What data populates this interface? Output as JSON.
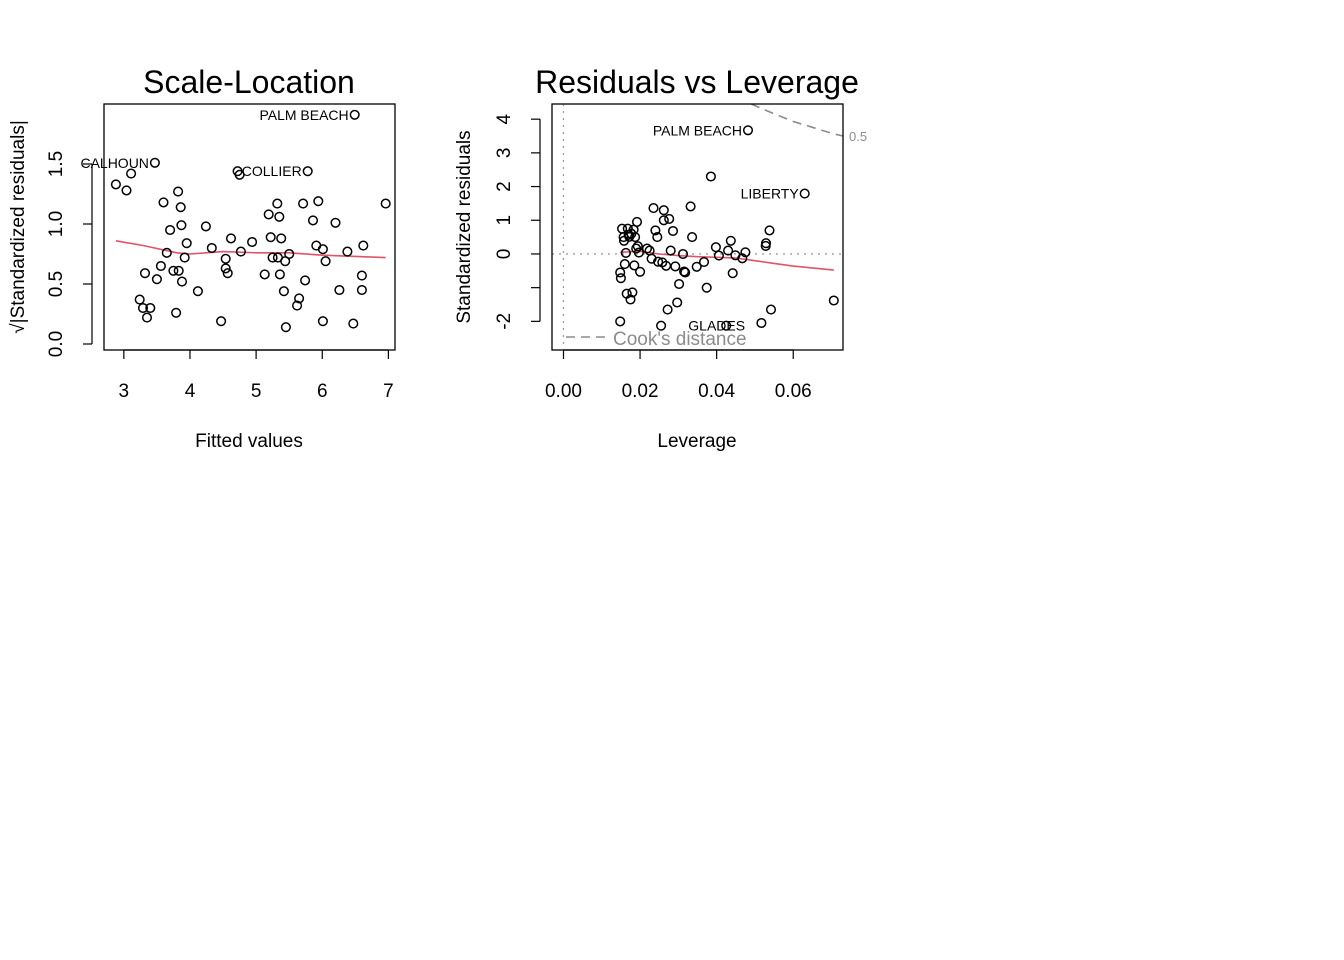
{
  "chart_data": [
    {
      "type": "scatter",
      "title": "Scale-Location",
      "xlabel": "Fitted values",
      "ylabel": "√|Standardized residuals|",
      "xlim": [
        2.7,
        7.1
      ],
      "ylim": [
        -0.05,
        2.0
      ],
      "xticks": [
        3,
        4,
        5,
        6,
        7
      ],
      "xtick_labels": [
        "3",
        "4",
        "5",
        "6",
        "7"
      ],
      "yticks": [
        0.0,
        0.5,
        1.0,
        1.5
      ],
      "ytick_labels": [
        "0.0",
        "0.5",
        "1.0",
        "1.5"
      ],
      "grid": false,
      "points": [
        [
          2.88,
          1.33
        ],
        [
          3.04,
          1.28
        ],
        [
          3.11,
          1.42
        ],
        [
          3.24,
          0.37
        ],
        [
          3.29,
          0.3
        ],
        [
          3.32,
          0.59
        ],
        [
          3.35,
          0.22
        ],
        [
          3.4,
          0.3
        ],
        [
          3.47,
          1.51
        ],
        [
          3.5,
          0.54
        ],
        [
          3.56,
          0.65
        ],
        [
          3.6,
          1.18
        ],
        [
          3.65,
          0.76
        ],
        [
          3.7,
          0.95
        ],
        [
          3.75,
          0.61
        ],
        [
          3.79,
          0.26
        ],
        [
          3.82,
          1.27
        ],
        [
          3.83,
          0.61
        ],
        [
          3.86,
          1.14
        ],
        [
          3.87,
          0.99
        ],
        [
          3.88,
          0.52
        ],
        [
          3.92,
          0.72
        ],
        [
          3.95,
          0.84
        ],
        [
          4.12,
          0.44
        ],
        [
          4.24,
          0.98
        ],
        [
          4.33,
          0.8
        ],
        [
          4.47,
          0.19
        ],
        [
          4.54,
          0.71
        ],
        [
          4.54,
          0.63
        ],
        [
          4.57,
          0.59
        ],
        [
          4.62,
          0.88
        ],
        [
          4.72,
          1.44
        ],
        [
          4.75,
          1.41
        ],
        [
          4.77,
          0.77
        ],
        [
          4.94,
          0.85
        ],
        [
          5.13,
          0.58
        ],
        [
          5.19,
          1.08
        ],
        [
          5.22,
          0.89
        ],
        [
          5.25,
          0.72
        ],
        [
          5.32,
          1.17
        ],
        [
          5.33,
          0.72
        ],
        [
          5.35,
          1.06
        ],
        [
          5.36,
          0.58
        ],
        [
          5.38,
          0.88
        ],
        [
          5.42,
          0.44
        ],
        [
          5.44,
          0.69
        ],
        [
          5.45,
          0.14
        ],
        [
          5.5,
          0.75
        ],
        [
          5.62,
          0.32
        ],
        [
          5.65,
          0.38
        ],
        [
          5.71,
          1.17
        ],
        [
          5.74,
          0.53
        ],
        [
          5.78,
          1.44
        ],
        [
          5.86,
          1.03
        ],
        [
          5.91,
          0.82
        ],
        [
          5.94,
          1.19
        ],
        [
          6.01,
          0.19
        ],
        [
          6.01,
          0.79
        ],
        [
          6.05,
          0.69
        ],
        [
          6.2,
          1.01
        ],
        [
          6.26,
          0.45
        ],
        [
          6.38,
          0.77
        ],
        [
          6.47,
          0.17
        ],
        [
          6.49,
          1.91
        ],
        [
          6.6,
          0.57
        ],
        [
          6.6,
          0.45
        ],
        [
          6.62,
          0.82
        ],
        [
          6.96,
          1.17
        ]
      ],
      "smooth_line": [
        [
          2.88,
          0.86
        ],
        [
          3.3,
          0.82
        ],
        [
          3.8,
          0.76
        ],
        [
          4.0,
          0.75
        ],
        [
          4.5,
          0.77
        ],
        [
          5.0,
          0.76
        ],
        [
          5.5,
          0.76
        ],
        [
          6.0,
          0.74
        ],
        [
          6.5,
          0.73
        ],
        [
          6.96,
          0.72
        ]
      ],
      "labels": [
        {
          "text": "PALM BEACH",
          "x": 6.49,
          "y": 1.91
        },
        {
          "text": "CALHOUN",
          "x": 3.47,
          "y": 1.51
        },
        {
          "text": "COLLIER",
          "x": 5.78,
          "y": 1.44
        }
      ]
    },
    {
      "type": "scatter",
      "title": "Residuals vs Leverage",
      "xlabel": "Leverage",
      "ylabel": "Standardized residuals",
      "xlim": [
        -0.003,
        0.073
      ],
      "ylim": [
        -2.85,
        4.45
      ],
      "xticks": [
        0.0,
        0.02,
        0.04,
        0.06
      ],
      "xtick_labels": [
        "0.00",
        "0.02",
        "0.04",
        "0.06"
      ],
      "yticks": [
        -2,
        -1,
        0,
        1,
        2,
        3,
        4
      ],
      "ytick_labels": [
        "-2",
        "",
        "0",
        "1",
        "2",
        "3",
        "4"
      ],
      "grid": false,
      "points": [
        [
          0.0148,
          -2.0
        ],
        [
          0.0148,
          -0.55
        ],
        [
          0.015,
          -0.72
        ],
        [
          0.0153,
          0.75
        ],
        [
          0.0157,
          0.5
        ],
        [
          0.0158,
          0.39
        ],
        [
          0.016,
          -0.3
        ],
        [
          0.0163,
          0.03
        ],
        [
          0.0165,
          -1.18
        ],
        [
          0.0168,
          0.75
        ],
        [
          0.017,
          0.57
        ],
        [
          0.0172,
          0.51
        ],
        [
          0.0175,
          -1.35
        ],
        [
          0.0177,
          0.6
        ],
        [
          0.018,
          -1.14
        ],
        [
          0.0183,
          0.72
        ],
        [
          0.0185,
          -0.34
        ],
        [
          0.0187,
          0.5
        ],
        [
          0.019,
          0.16
        ],
        [
          0.0192,
          0.95
        ],
        [
          0.0194,
          0.23
        ],
        [
          0.0197,
          0.04
        ],
        [
          0.02,
          -0.53
        ],
        [
          0.0218,
          0.16
        ],
        [
          0.0225,
          0.1
        ],
        [
          0.023,
          -0.14
        ],
        [
          0.0235,
          1.36
        ],
        [
          0.024,
          0.7
        ],
        [
          0.0245,
          0.5
        ],
        [
          0.0247,
          -0.23
        ],
        [
          0.0255,
          -2.13
        ],
        [
          0.0258,
          -0.25
        ],
        [
          0.0262,
          1.0
        ],
        [
          0.0262,
          1.3
        ],
        [
          0.0268,
          -0.35
        ],
        [
          0.0272,
          -1.65
        ],
        [
          0.0276,
          1.04
        ],
        [
          0.028,
          0.1
        ],
        [
          0.0286,
          0.68
        ],
        [
          0.0292,
          -0.37
        ],
        [
          0.0297,
          -1.44
        ],
        [
          0.0302,
          -0.89
        ],
        [
          0.0312,
          0.0
        ],
        [
          0.0315,
          -0.52
        ],
        [
          0.0318,
          -0.55
        ],
        [
          0.0332,
          1.41
        ],
        [
          0.0336,
          0.5
        ],
        [
          0.0348,
          -0.38
        ],
        [
          0.0367,
          -0.24
        ],
        [
          0.0374,
          -1.0
        ],
        [
          0.0385,
          2.3
        ],
        [
          0.0398,
          0.2
        ],
        [
          0.0406,
          -0.05
        ],
        [
          0.0425,
          -2.13
        ],
        [
          0.043,
          0.1
        ],
        [
          0.0437,
          0.39
        ],
        [
          0.0442,
          -0.57
        ],
        [
          0.0449,
          -0.04
        ],
        [
          0.0467,
          -0.13
        ],
        [
          0.0475,
          0.05
        ],
        [
          0.0482,
          3.67
        ],
        [
          0.0517,
          -2.05
        ],
        [
          0.0528,
          0.24
        ],
        [
          0.0529,
          0.32
        ],
        [
          0.0538,
          0.7
        ],
        [
          0.0542,
          -1.65
        ],
        [
          0.063,
          1.79
        ],
        [
          0.0706,
          -1.38
        ]
      ],
      "smooth_line": [
        [
          0.0148,
          0.05
        ],
        [
          0.02,
          0.08
        ],
        [
          0.025,
          0.0
        ],
        [
          0.03,
          -0.05
        ],
        [
          0.035,
          -0.08
        ],
        [
          0.04,
          -0.1
        ],
        [
          0.045,
          -0.12
        ],
        [
          0.05,
          -0.2
        ],
        [
          0.055,
          -0.28
        ],
        [
          0.06,
          -0.36
        ],
        [
          0.0706,
          -0.48
        ]
      ],
      "cook_contour": {
        "level_label": "0.5",
        "points": [
          [
            0.049,
            4.45
          ],
          [
            0.055,
            4.16
          ],
          [
            0.06,
            3.93
          ],
          [
            0.065,
            3.76
          ],
          [
            0.07,
            3.58
          ],
          [
            0.073,
            3.5
          ]
        ]
      },
      "labels": [
        {
          "text": "PALM BEACH",
          "x": 0.0482,
          "y": 3.67
        },
        {
          "text": "LIBERTY",
          "x": 0.063,
          "y": 1.79
        },
        {
          "text": "GLADES",
          "x": 0.049,
          "y": -2.13
        }
      ],
      "legend_text": "Cook's distance",
      "legend_position": "bottom-left"
    }
  ],
  "colors": {
    "smooth": "#df536b",
    "cook": "#8c8c8c",
    "reference": "#9e9e9e",
    "points": "#000000"
  }
}
